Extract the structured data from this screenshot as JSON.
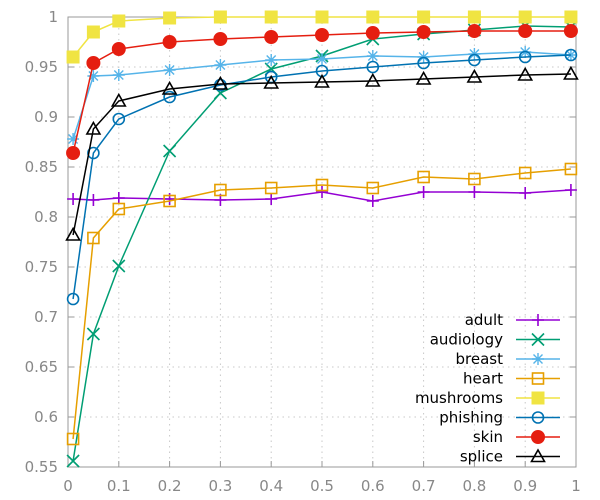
{
  "chart_data": {
    "type": "line",
    "title": "",
    "xlabel": "",
    "ylabel": "",
    "xlim": [
      0,
      1
    ],
    "ylim": [
      0.55,
      1
    ],
    "x_ticks": [
      "0",
      "0.1",
      "0.2",
      "0.3",
      "0.4",
      "0.5",
      "0.6",
      "0.7",
      "0.8",
      "0.9",
      "1"
    ],
    "y_ticks": [
      "0.55",
      "0.6",
      "0.65",
      "0.7",
      "0.75",
      "0.8",
      "0.85",
      "0.9",
      "0.95",
      "1"
    ],
    "grid": true,
    "legend_position": "bottom-right",
    "x": [
      0.01,
      0.05,
      0.1,
      0.2,
      0.3,
      0.4,
      0.5,
      0.6,
      0.7,
      0.8,
      0.9,
      0.99
    ],
    "series": [
      {
        "name": "adult",
        "color": "#9400d3",
        "marker": "plus",
        "values": [
          0.818,
          0.817,
          0.819,
          0.818,
          0.817,
          0.818,
          0.825,
          0.816,
          0.825,
          0.825,
          0.824,
          0.827
        ]
      },
      {
        "name": "audiology",
        "color": "#009e73",
        "marker": "cross",
        "values": [
          0.556,
          0.683,
          0.751,
          0.866,
          0.924,
          0.948,
          0.961,
          0.978,
          0.983,
          0.987,
          0.991,
          0.99
        ]
      },
      {
        "name": "breast",
        "color": "#56b4e9",
        "marker": "star",
        "values": [
          0.878,
          0.941,
          0.942,
          0.947,
          0.952,
          0.957,
          0.958,
          0.961,
          0.96,
          0.963,
          0.965,
          0.962
        ]
      },
      {
        "name": "heart",
        "color": "#e69f00",
        "marker": "square-open",
        "values": [
          0.578,
          0.779,
          0.808,
          0.816,
          0.827,
          0.829,
          0.832,
          0.829,
          0.84,
          0.838,
          0.844,
          0.848
        ]
      },
      {
        "name": "mushrooms",
        "color": "#f0e442",
        "marker": "square-filled",
        "values": [
          0.96,
          0.985,
          0.996,
          0.999,
          1.0,
          1.0,
          1.0,
          1.0,
          1.0,
          1.0,
          1.0,
          1.0
        ]
      },
      {
        "name": "phishing",
        "color": "#0072b2",
        "marker": "circle-open",
        "values": [
          0.718,
          0.864,
          0.898,
          0.92,
          0.932,
          0.94,
          0.946,
          0.95,
          0.954,
          0.957,
          0.96,
          0.962
        ]
      },
      {
        "name": "skin",
        "color": "#e51e10",
        "marker": "circle-filled",
        "values": [
          0.864,
          0.954,
          0.968,
          0.975,
          0.978,
          0.98,
          0.982,
          0.984,
          0.985,
          0.986,
          0.986,
          0.986
        ]
      },
      {
        "name": "splice",
        "color": "#000000",
        "marker": "triangle-open",
        "values": [
          0.782,
          0.888,
          0.916,
          0.928,
          0.933,
          0.934,
          0.935,
          0.936,
          0.938,
          0.94,
          0.942,
          0.943
        ]
      }
    ]
  }
}
